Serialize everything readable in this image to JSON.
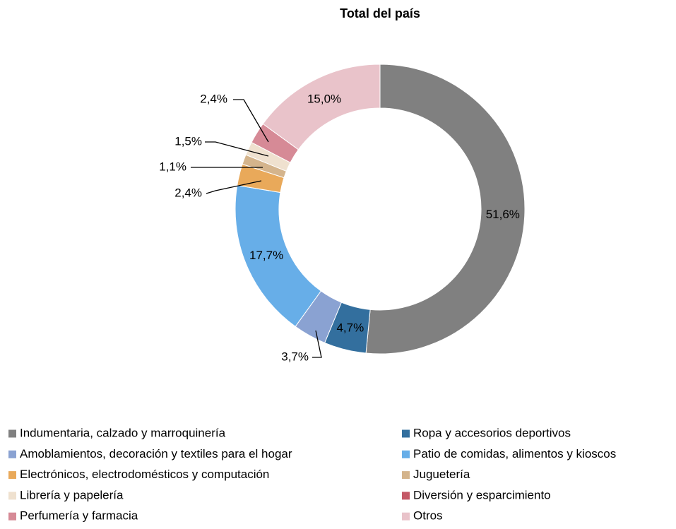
{
  "chart_data": {
    "type": "donut",
    "title": "Total del país",
    "categories": [
      "Indumentaria, calzado y marroquinería",
      "Ropa y accesorios deportivos",
      "Amoblamientos, decoración y textiles para el hogar",
      "Patio de comidas, alimentos y kioscos",
      "Electrónicos, electrodomésticos y computación",
      "Juguetería",
      "Librería y papelería",
      "Diversión y esparcimiento",
      "Perfumería y farmacia",
      "Otros"
    ],
    "values": [
      51.6,
      4.7,
      3.7,
      17.7,
      2.4,
      1.1,
      1.5,
      0,
      2.4,
      15.0
    ],
    "value_labels": [
      "51,6%",
      "4,7%",
      "3,7%",
      "17,7%",
      "2,4%",
      "1,1%",
      "1,5%",
      null,
      "2,4%",
      "15,0%"
    ],
    "colors": [
      "#808080",
      "#336f9e",
      "#8aa2d2",
      "#67aee8",
      "#e9a95a",
      "#d4b48c",
      "#efe1cf",
      "#c45866",
      "#d68a96",
      "#e9c3ca"
    ]
  }
}
